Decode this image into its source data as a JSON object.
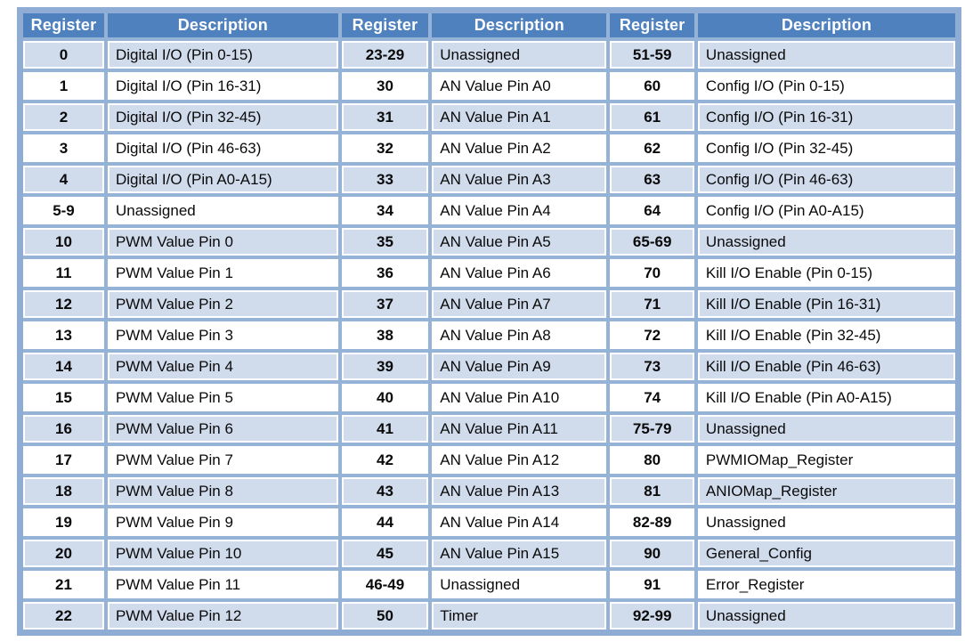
{
  "colors": {
    "header_bg": "#4E81BD",
    "header_text": "#FFFFFF",
    "band_row_bg": "#D0DBEC",
    "white_row_bg": "#FFFFFF",
    "grid_border": "#95B3D7",
    "outer_border": "#8FACD4",
    "body_text": "#0A0A0A"
  },
  "table": {
    "headers": [
      "Register",
      "Description",
      "Register",
      "Description",
      "Register",
      "Description"
    ],
    "rows": [
      [
        "0",
        "Digital I/O (Pin 0-15)",
        "23-29",
        "Unassigned",
        "51-59",
        "Unassigned"
      ],
      [
        "1",
        "Digital I/O (Pin 16-31)",
        "30",
        "AN Value Pin A0",
        "60",
        "Config I/O (Pin 0-15)"
      ],
      [
        "2",
        "Digital I/O (Pin 32-45)",
        "31",
        "AN Value Pin A1",
        "61",
        "Config I/O (Pin 16-31)"
      ],
      [
        "3",
        "Digital I/O (Pin 46-63)",
        "32",
        "AN Value Pin A2",
        "62",
        "Config I/O (Pin 32-45)"
      ],
      [
        "4",
        "Digital I/O (Pin A0-A15)",
        "33",
        "AN Value Pin A3",
        "63",
        "Config I/O (Pin 46-63)"
      ],
      [
        "5-9",
        "Unassigned",
        "34",
        "AN Value Pin A4",
        "64",
        "Config I/O (Pin A0-A15)"
      ],
      [
        "10",
        "PWM Value Pin 0",
        "35",
        "AN Value Pin A5",
        "65-69",
        "Unassigned"
      ],
      [
        "11",
        "PWM Value Pin 1",
        "36",
        "AN Value Pin A6",
        "70",
        "Kill I/O Enable (Pin 0-15)"
      ],
      [
        "12",
        "PWM Value Pin 2",
        "37",
        "AN Value Pin A7",
        "71",
        "Kill I/O Enable (Pin 16-31)"
      ],
      [
        "13",
        "PWM Value Pin 3",
        "38",
        "AN Value Pin A8",
        "72",
        "Kill I/O Enable (Pin 32-45)"
      ],
      [
        "14",
        "PWM Value Pin 4",
        "39",
        "AN Value Pin A9",
        "73",
        "Kill I/O Enable (Pin 46-63)"
      ],
      [
        "15",
        "PWM Value Pin 5",
        "40",
        "AN Value Pin A10",
        "74",
        "Kill I/O Enable (Pin A0-A15)"
      ],
      [
        "16",
        "PWM Value Pin 6",
        "41",
        "AN Value Pin A11",
        "75-79",
        "Unassigned"
      ],
      [
        "17",
        "PWM Value Pin 7",
        "42",
        "AN Value Pin A12",
        "80",
        "PWMIOMap_Register"
      ],
      [
        "18",
        "PWM Value Pin 8",
        "43",
        "AN Value Pin A13",
        "81",
        "ANIOMap_Register"
      ],
      [
        "19",
        "PWM Value Pin 9",
        "44",
        "AN Value Pin A14",
        "82-89",
        "Unassigned"
      ],
      [
        "20",
        "PWM Value Pin 10",
        "45",
        "AN Value Pin A15",
        "90",
        "General_Config"
      ],
      [
        "21",
        "PWM Value Pin 11",
        "46-49",
        "Unassigned",
        "91",
        "Error_Register"
      ],
      [
        "22",
        "PWM Value Pin 12",
        "50",
        "Timer",
        "92-99",
        "Unassigned"
      ]
    ]
  }
}
